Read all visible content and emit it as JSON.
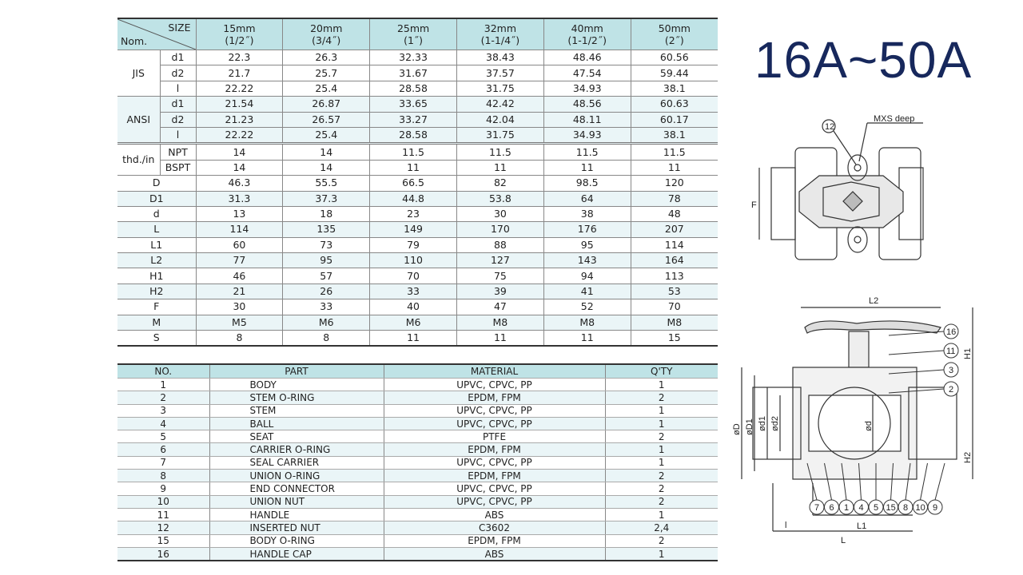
{
  "title": "16A~50A",
  "dimension_table": {
    "corner_top": "SIZE",
    "corner_bottom": "Nom.",
    "sizes": [
      {
        "mm": "15mm",
        "inch": "(1/2˝)"
      },
      {
        "mm": "20mm",
        "inch": "(3/4˝)"
      },
      {
        "mm": "25mm",
        "inch": "(1˝)"
      },
      {
        "mm": "32mm",
        "inch": "(1-1/4˝)"
      },
      {
        "mm": "40mm",
        "inch": "(1-1/2˝)"
      },
      {
        "mm": "50mm",
        "inch": "(2˝)"
      }
    ],
    "groups": {
      "jis": "JIS",
      "ansi": "ANSI",
      "thd": "thd./in"
    },
    "rows": [
      {
        "label": "d1",
        "values": [
          "22.3",
          "26.3",
          "32.33",
          "38.43",
          "48.46",
          "60.56"
        ]
      },
      {
        "label": "d2",
        "values": [
          "21.7",
          "25.7",
          "31.67",
          "37.57",
          "47.54",
          "59.44"
        ]
      },
      {
        "label": "l",
        "values": [
          "22.22",
          "25.4",
          "28.58",
          "31.75",
          "34.93",
          "38.1"
        ]
      },
      {
        "label": "d1",
        "values": [
          "21.54",
          "26.87",
          "33.65",
          "42.42",
          "48.56",
          "60.63"
        ]
      },
      {
        "label": "d2",
        "values": [
          "21.23",
          "26.57",
          "33.27",
          "42.04",
          "48.11",
          "60.17"
        ]
      },
      {
        "label": "l",
        "values": [
          "22.22",
          "25.4",
          "28.58",
          "31.75",
          "34.93",
          "38.1"
        ]
      },
      {
        "label": "NPT",
        "values": [
          "14",
          "14",
          "11.5",
          "11.5",
          "11.5",
          "11.5"
        ]
      },
      {
        "label": "BSPT",
        "values": [
          "14",
          "14",
          "11",
          "11",
          "11",
          "11"
        ]
      },
      {
        "label": "D",
        "values": [
          "46.3",
          "55.5",
          "66.5",
          "82",
          "98.5",
          "120"
        ]
      },
      {
        "label": "D1",
        "values": [
          "31.3",
          "37.3",
          "44.8",
          "53.8",
          "64",
          "78"
        ]
      },
      {
        "label": "d",
        "values": [
          "13",
          "18",
          "23",
          "30",
          "38",
          "48"
        ]
      },
      {
        "label": "L",
        "values": [
          "114",
          "135",
          "149",
          "170",
          "176",
          "207"
        ]
      },
      {
        "label": "L1",
        "values": [
          "60",
          "73",
          "79",
          "88",
          "95",
          "114"
        ]
      },
      {
        "label": "L2",
        "values": [
          "77",
          "95",
          "110",
          "127",
          "143",
          "164"
        ]
      },
      {
        "label": "H1",
        "values": [
          "46",
          "57",
          "70",
          "75",
          "94",
          "113"
        ]
      },
      {
        "label": "H2",
        "values": [
          "21",
          "26",
          "33",
          "39",
          "41",
          "53"
        ]
      },
      {
        "label": "F",
        "values": [
          "30",
          "33",
          "40",
          "47",
          "52",
          "70"
        ]
      },
      {
        "label": "M",
        "values": [
          "M5",
          "M6",
          "M6",
          "M8",
          "M8",
          "M8"
        ]
      },
      {
        "label": "S",
        "values": [
          "8",
          "8",
          "11",
          "11",
          "11",
          "15"
        ]
      }
    ]
  },
  "parts_table": {
    "headers": [
      "NO.",
      "PART",
      "MATERIAL",
      "Q'TY"
    ],
    "rows": [
      [
        "1",
        "BODY",
        "UPVC, CPVC, PP",
        "1"
      ],
      [
        "2",
        "STEM O-RING",
        "EPDM, FPM",
        "2"
      ],
      [
        "3",
        "STEM",
        "UPVC, CPVC, PP",
        "1"
      ],
      [
        "4",
        "BALL",
        "UPVC, CPVC, PP",
        "1"
      ],
      [
        "5",
        "SEAT",
        "PTFE",
        "2"
      ],
      [
        "6",
        "CARRIER O-RING",
        "EPDM, FPM",
        "1"
      ],
      [
        "7",
        "SEAL CARRIER",
        "UPVC, CPVC, PP",
        "1"
      ],
      [
        "8",
        "UNION O-RING",
        "EPDM, FPM",
        "2"
      ],
      [
        "9",
        "END CONNECTOR",
        "UPVC, CPVC, PP",
        "2"
      ],
      [
        "10",
        "UNION NUT",
        "UPVC, CPVC, PP",
        "2"
      ],
      [
        "11",
        "HANDLE",
        "ABS",
        "1"
      ],
      [
        "12",
        "INSERTED NUT",
        "C3602",
        "2,4"
      ],
      [
        "15",
        "BODY O-RING",
        "EPDM, FPM",
        "2"
      ],
      [
        "16",
        "HANDLE CAP",
        "ABS",
        "1"
      ]
    ]
  },
  "top_view": {
    "note": "MXS deep",
    "callout": "12",
    "dim_f": "F"
  },
  "section_view": {
    "dims": {
      "L2": "L2",
      "H1": "H1",
      "H2": "H2",
      "L1": "L1",
      "L": "L",
      "l": "l",
      "D": "øD",
      "D1": "øD1",
      "d1": "ød1",
      "d2": "ød2",
      "d": "ød"
    },
    "callouts_right": [
      "16",
      "11",
      "3",
      "2"
    ],
    "callouts_bottom": [
      "7",
      "6",
      "1",
      "4",
      "5",
      "15",
      "8",
      "10",
      "9"
    ]
  }
}
